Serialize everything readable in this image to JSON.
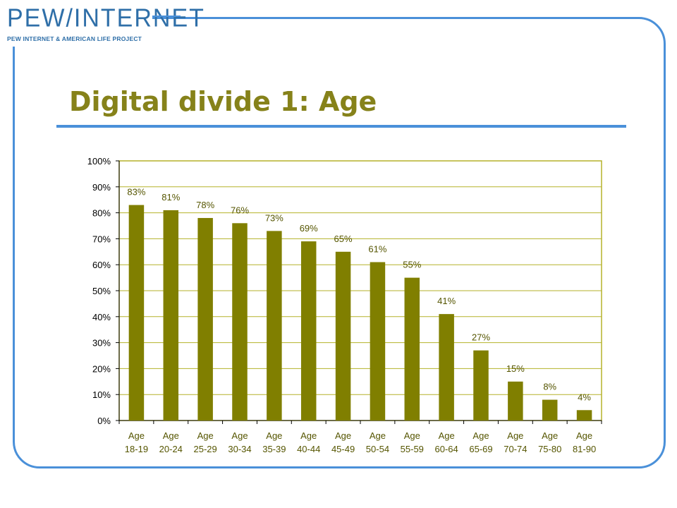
{
  "logo": {
    "title": "PEW/INTERNET",
    "subtitle": "PEW INTERNET & AMERICAN LIFE PROJECT"
  },
  "slide": {
    "title": "Digital divide 1: Age"
  },
  "colors": {
    "frame": "#4a90d9",
    "title": "#86821a",
    "bar": "#807f00",
    "label": "#555500"
  },
  "chart_data": {
    "type": "bar",
    "categories": [
      [
        "Age",
        "18-19"
      ],
      [
        "Age",
        "20-24"
      ],
      [
        "Age",
        "25-29"
      ],
      [
        "Age",
        "30-34"
      ],
      [
        "Age",
        "35-39"
      ],
      [
        "Age",
        "40-44"
      ],
      [
        "Age",
        "45-49"
      ],
      [
        "Age",
        "50-54"
      ],
      [
        "Age",
        "55-59"
      ],
      [
        "Age",
        "60-64"
      ],
      [
        "Age",
        "65-69"
      ],
      [
        "Age",
        "70-74"
      ],
      [
        "Age",
        "75-80"
      ],
      [
        "Age",
        "81-90"
      ]
    ],
    "values": [
      83,
      81,
      78,
      76,
      73,
      69,
      65,
      61,
      55,
      41,
      27,
      15,
      8,
      4
    ],
    "data_labels": [
      "83%",
      "81%",
      "78%",
      "76%",
      "73%",
      "69%",
      "65%",
      "61%",
      "55%",
      "41%",
      "27%",
      "15%",
      "8%",
      "4%"
    ],
    "ylim": [
      0,
      100
    ],
    "y_ticks": [
      "0%",
      "10%",
      "20%",
      "30%",
      "40%",
      "50%",
      "60%",
      "70%",
      "80%",
      "90%",
      "100%"
    ],
    "grid": true,
    "legend": "none"
  }
}
